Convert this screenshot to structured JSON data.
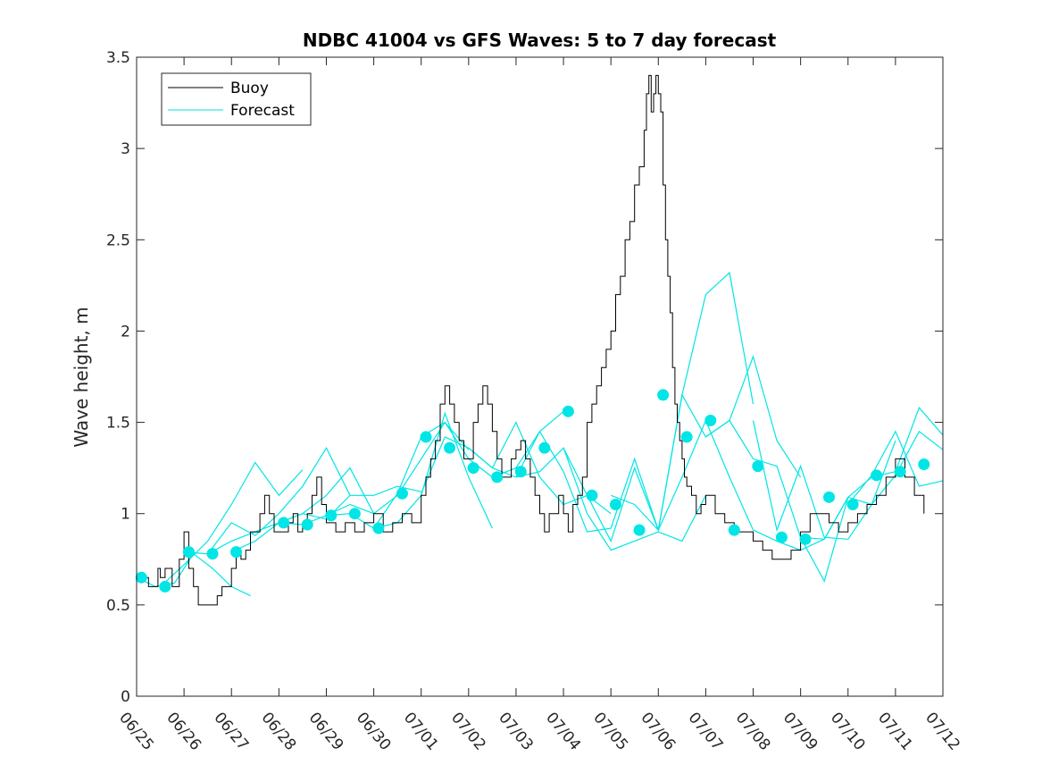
{
  "chart_data": {
    "type": "line",
    "title": "NDBC 41004 vs GFS Waves: 5 to 7 day forecast",
    "xlabel": "",
    "ylabel": "Wave height, m",
    "xlim": [
      0,
      17
    ],
    "ylim": [
      0,
      3.5
    ],
    "x_ticks": [
      "06/25",
      "06/26",
      "06/27",
      "06/28",
      "06/29",
      "06/30",
      "07/01",
      "07/02",
      "07/03",
      "07/04",
      "07/05",
      "07/06",
      "07/07",
      "07/08",
      "07/09",
      "07/10",
      "07/11",
      "07/12"
    ],
    "y_ticks": [
      "0",
      "0.5",
      "1",
      "1.5",
      "2",
      "2.5",
      "3",
      "3.5"
    ],
    "grid": false,
    "legend": {
      "location": "top-left",
      "entries": [
        {
          "name": "Buoy",
          "color": "#000000"
        },
        {
          "name": "Forecast",
          "color": "#00e5e5"
        }
      ]
    },
    "x_units_note_days_from_0625": true,
    "series": [
      {
        "name": "Buoy",
        "color": "#000000",
        "x": [
          0,
          0.25,
          0.45,
          0.5,
          0.6,
          0.75,
          0.9,
          1.0,
          1.1,
          1.2,
          1.3,
          1.4,
          1.5,
          1.6,
          1.7,
          1.8,
          1.9,
          2.0,
          2.1,
          2.2,
          2.3,
          2.4,
          2.5,
          2.6,
          2.7,
          2.8,
          2.9,
          3.0,
          3.1,
          3.2,
          3.3,
          3.4,
          3.5,
          3.6,
          3.7,
          3.8,
          3.9,
          4.0,
          4.2,
          4.4,
          4.6,
          4.8,
          5.0,
          5.2,
          5.4,
          5.6,
          5.8,
          6.0,
          6.1,
          6.2,
          6.3,
          6.4,
          6.5,
          6.6,
          6.7,
          6.8,
          6.9,
          7.0,
          7.1,
          7.2,
          7.3,
          7.4,
          7.5,
          7.6,
          7.7,
          7.8,
          7.9,
          8.0,
          8.1,
          8.2,
          8.3,
          8.4,
          8.5,
          8.6,
          8.7,
          8.8,
          8.9,
          9.0,
          9.1,
          9.2,
          9.3,
          9.4,
          9.5,
          9.6,
          9.7,
          9.8,
          9.9,
          10.0,
          10.1,
          10.2,
          10.3,
          10.4,
          10.5,
          10.6,
          10.7,
          10.75,
          10.8,
          10.85,
          10.9,
          10.95,
          11.0,
          11.05,
          11.1,
          11.15,
          11.2,
          11.25,
          11.3,
          11.35,
          11.4,
          11.45,
          11.5,
          11.55,
          11.6,
          11.7,
          11.8,
          11.9,
          12.0,
          12.2,
          12.4,
          12.6,
          12.8,
          13.0,
          13.2,
          13.4,
          13.6,
          13.8,
          14.0,
          14.2,
          14.4,
          14.6,
          14.8,
          15.0,
          15.2,
          15.4,
          15.6,
          15.8,
          16.0,
          16.2,
          16.4,
          16.6
        ],
        "values": [
          0.65,
          0.6,
          0.7,
          0.65,
          0.7,
          0.6,
          0.75,
          0.9,
          0.7,
          0.6,
          0.5,
          0.5,
          0.5,
          0.5,
          0.55,
          0.6,
          0.6,
          0.7,
          0.8,
          0.75,
          0.8,
          0.9,
          0.9,
          1.0,
          1.1,
          1.0,
          0.9,
          0.9,
          0.9,
          0.95,
          1.0,
          0.9,
          0.95,
          1.0,
          1.1,
          1.2,
          1.05,
          0.95,
          0.9,
          0.95,
          0.9,
          0.95,
          1.0,
          0.9,
          0.95,
          1.0,
          0.95,
          1.1,
          1.2,
          1.3,
          1.4,
          1.6,
          1.7,
          1.6,
          1.5,
          1.4,
          1.3,
          1.3,
          1.5,
          1.6,
          1.7,
          1.6,
          1.45,
          1.3,
          1.2,
          1.2,
          1.3,
          1.35,
          1.4,
          1.3,
          1.2,
          1.1,
          1.0,
          0.9,
          1.0,
          1.0,
          1.1,
          1.0,
          0.9,
          1.05,
          1.1,
          1.2,
          1.5,
          1.6,
          1.7,
          1.8,
          1.9,
          2.0,
          2.2,
          2.3,
          2.5,
          2.6,
          2.8,
          2.9,
          3.1,
          3.3,
          3.4,
          3.2,
          3.3,
          3.4,
          3.3,
          3.2,
          2.8,
          2.5,
          2.3,
          2.1,
          1.8,
          1.6,
          1.5,
          1.4,
          1.3,
          1.2,
          1.15,
          1.1,
          1.0,
          1.05,
          1.1,
          1.0,
          0.95,
          0.9,
          0.9,
          0.85,
          0.8,
          0.75,
          0.75,
          0.8,
          0.9,
          1.0,
          1.0,
          0.95,
          0.9,
          0.95,
          1.0,
          1.05,
          1.1,
          1.2,
          1.3,
          1.2,
          1.1,
          1.0
        ]
      },
      {
        "name": "Forecast",
        "color": "#00e5e5",
        "segments": [
          {
            "x": [
              0,
              0.4,
              0.8,
              1.2,
              1.6,
              2.0,
              2.4
            ],
            "values": [
              0.65,
              0.6,
              0.62,
              0.78,
              0.7,
              0.6,
              0.55
            ]
          },
          {
            "x": [
              0.5,
              1.0,
              1.5,
              2.0,
              2.5,
              3.0,
              3.5
            ],
            "values": [
              0.6,
              0.72,
              0.85,
              1.05,
              1.28,
              1.1,
              1.24
            ]
          },
          {
            "x": [
              1.0,
              1.5,
              2.0,
              2.5,
              3.0,
              3.5,
              4.0,
              4.5
            ],
            "values": [
              0.79,
              0.78,
              0.95,
              0.88,
              1.0,
              1.15,
              1.36,
              1.1
            ]
          },
          {
            "x": [
              1.5,
              2.0,
              2.5,
              3.0,
              3.5,
              4.0,
              4.5,
              5.0
            ],
            "values": [
              0.78,
              0.85,
              0.9,
              0.95,
              1.0,
              1.1,
              1.25,
              1.0
            ]
          },
          {
            "x": [
              2.0,
              2.5,
              3.0,
              3.5,
              4.0,
              4.5,
              5.0,
              5.5,
              6.0
            ],
            "values": [
              0.79,
              0.85,
              0.95,
              1.0,
              0.97,
              1.1,
              1.1,
              1.15,
              1.12
            ]
          },
          {
            "x": [
              3.0,
              3.5,
              4.0,
              4.5,
              5.0,
              5.5,
              6.0,
              6.5,
              7.0
            ],
            "values": [
              0.95,
              0.94,
              0.99,
              1.05,
              1.0,
              1.1,
              1.3,
              1.5,
              1.35
            ]
          },
          {
            "x": [
              4.0,
              4.5,
              5.0,
              5.5,
              6.0,
              6.5,
              7.0,
              7.5
            ],
            "values": [
              0.99,
              1.0,
              0.92,
              0.95,
              1.1,
              1.55,
              1.2,
              0.92
            ]
          },
          {
            "x": [
              5.0,
              5.5,
              6.0,
              6.5,
              7.0,
              7.5,
              8.0,
              8.5,
              9.0
            ],
            "values": [
              0.92,
              1.11,
              1.42,
              1.5,
              1.3,
              1.2,
              1.25,
              1.45,
              1.56
            ]
          },
          {
            "x": [
              6.0,
              6.5,
              7.0,
              7.5,
              8.0,
              8.5,
              9.0,
              9.5,
              10.0
            ],
            "values": [
              1.11,
              1.42,
              1.36,
              1.25,
              1.5,
              1.2,
              1.05,
              1.1,
              1.0
            ]
          },
          {
            "x": [
              7.0,
              7.5,
              8.0,
              8.5,
              9.0,
              9.5,
              10.0,
              10.5,
              11.0
            ],
            "values": [
              1.36,
              1.25,
              1.2,
              1.45,
              1.23,
              0.9,
              0.92,
              1.3,
              0.91
            ]
          },
          {
            "x": [
              8.0,
              8.5,
              9.0,
              9.5,
              10.0,
              10.5,
              11.0,
              11.5,
              12.0
            ],
            "values": [
              1.2,
              1.23,
              1.36,
              1.0,
              0.8,
              0.85,
              0.9,
              0.85,
              1.1
            ]
          },
          {
            "x": [
              9.0,
              9.5,
              10.0,
              10.5,
              11.0,
              11.5,
              12.0,
              12.5,
              13.0
            ],
            "values": [
              1.36,
              1.1,
              0.85,
              1.25,
              0.91,
              1.65,
              2.2,
              2.32,
              1.6
            ]
          },
          {
            "x": [
              10.0,
              10.5,
              11.0,
              11.5,
              12.0,
              12.5,
              13.0,
              13.5,
              14.0
            ],
            "values": [
              1.1,
              1.05,
              0.91,
              1.65,
              1.42,
              1.51,
              1.86,
              1.4,
              1.2
            ]
          },
          {
            "x": [
              11.0,
              11.5,
              12.0,
              12.5,
              13.0,
              13.5,
              14.0,
              14.5,
              15.0
            ],
            "values": [
              0.91,
              1.2,
              1.51,
              1.2,
              0.91,
              0.85,
              0.8,
              0.86,
              1.09
            ]
          },
          {
            "x": [
              12.0,
              12.5,
              13.0,
              13.5,
              14.0,
              14.5,
              15.0,
              15.5,
              16.0
            ],
            "values": [
              1.42,
              1.51,
              1.3,
              1.26,
              0.87,
              0.86,
              1.09,
              1.05,
              1.4
            ]
          },
          {
            "x": [
              13.0,
              13.5,
              14.0,
              14.5,
              15.0,
              15.5,
              16.0,
              16.5,
              17.0
            ],
            "values": [
              1.51,
              0.91,
              1.26,
              0.87,
              0.86,
              1.05,
              1.21,
              1.45,
              1.35
            ]
          },
          {
            "x": [
              14.0,
              14.5,
              15.0,
              15.5,
              16.0,
              16.5,
              17.0
            ],
            "values": [
              0.87,
              0.63,
              1.09,
              1.2,
              1.23,
              1.58,
              1.43
            ]
          },
          {
            "x": [
              15.0,
              15.5,
              16.0,
              16.5,
              17.0
            ],
            "values": [
              1.05,
              1.21,
              1.45,
              1.15,
              1.18
            ]
          }
        ],
        "markers": {
          "x": [
            0.1,
            0.6,
            1.1,
            1.6,
            2.1,
            3.1,
            3.6,
            4.1,
            4.6,
            5.1,
            5.6,
            6.1,
            6.6,
            7.1,
            7.6,
            8.1,
            8.6,
            9.1,
            9.6,
            10.1,
            10.6,
            11.1,
            11.6,
            12.1,
            12.6,
            13.1,
            13.6,
            14.1,
            14.6,
            15.1,
            15.6,
            16.1,
            16.6
          ],
          "values": [
            0.65,
            0.6,
            0.79,
            0.78,
            0.79,
            0.95,
            0.94,
            0.99,
            1.0,
            0.92,
            1.11,
            1.42,
            1.36,
            1.25,
            1.2,
            1.23,
            1.36,
            1.56,
            1.1,
            1.05,
            0.91,
            1.65,
            1.42,
            1.51,
            0.91,
            1.26,
            0.87,
            0.86,
            1.09,
            1.05,
            1.21,
            1.23,
            1.27
          ]
        }
      }
    ]
  }
}
